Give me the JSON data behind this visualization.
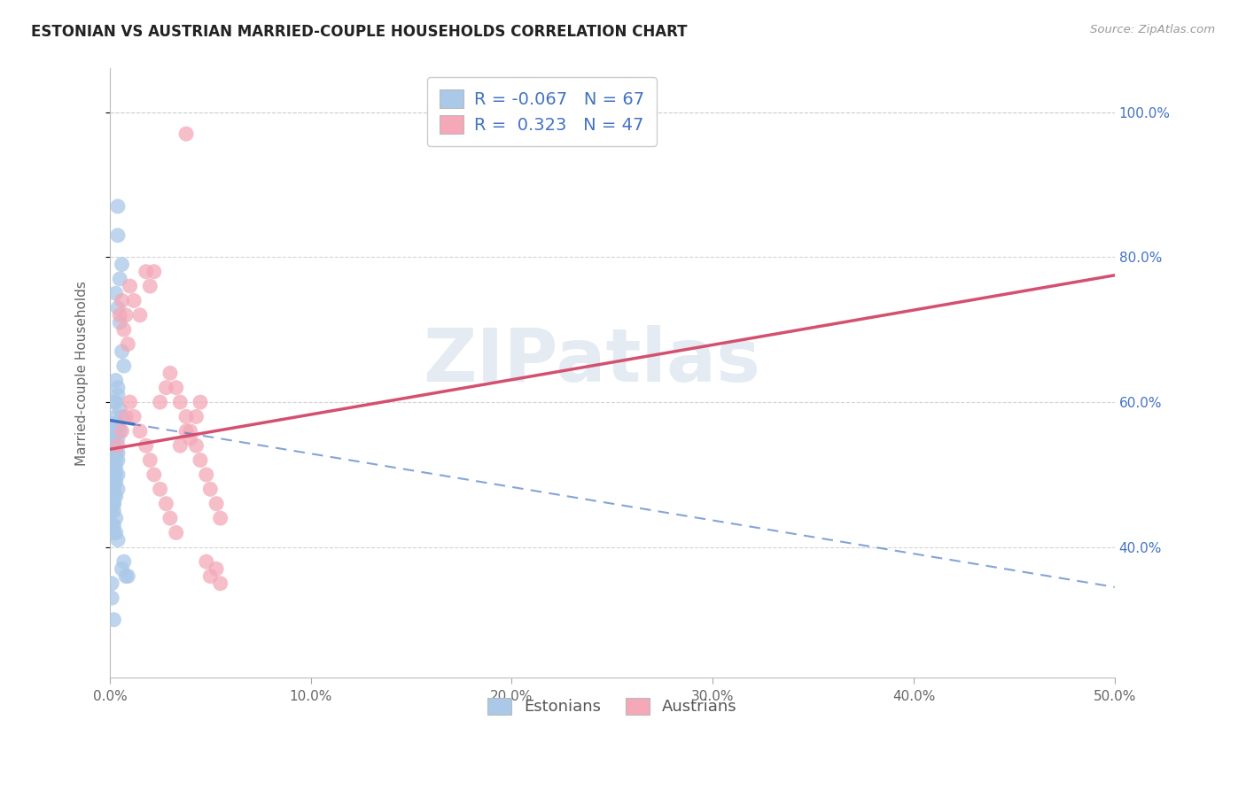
{
  "title": "ESTONIAN VS AUSTRIAN MARRIED-COUPLE HOUSEHOLDS CORRELATION CHART",
  "source": "Source: ZipAtlas.com",
  "ylabel": "Married-couple Households",
  "xlim": [
    0.0,
    0.5
  ],
  "ylim_low": 0.22,
  "ylim_high": 1.06,
  "xtick_values": [
    0.0,
    0.1,
    0.2,
    0.3,
    0.4,
    0.5
  ],
  "ytick_values": [
    0.4,
    0.6,
    0.8,
    1.0
  ],
  "estonian_color": "#aac8e8",
  "austrian_color": "#f4a8b8",
  "estonian_line_color": "#4472c4",
  "austrian_line_color": "#d45070",
  "legend_R_blue": "-0.067",
  "legend_N_blue": "67",
  "legend_R_pink": " 0.323",
  "legend_N_pink": "47",
  "watermark": "ZIPatlas",
  "background_color": "#ffffff",
  "grid_color": "#d0d0d0",
  "title_color": "#222222",
  "source_color": "#999999",
  "label_color": "#666666",
  "axis_tick_color": "#4472c4",
  "est_line_intercept": 0.575,
  "est_line_slope": -0.46,
  "aut_line_intercept": 0.535,
  "aut_line_slope": 0.48,
  "est_x": [
    0.002,
    0.004,
    0.004,
    0.006,
    0.005,
    0.003,
    0.004,
    0.005,
    0.006,
    0.007,
    0.003,
    0.004,
    0.005,
    0.006,
    0.004,
    0.003,
    0.002,
    0.003,
    0.004,
    0.005,
    0.001,
    0.002,
    0.003,
    0.004,
    0.002,
    0.001,
    0.002,
    0.003,
    0.004,
    0.003,
    0.002,
    0.002,
    0.003,
    0.004,
    0.003,
    0.002,
    0.001,
    0.002,
    0.003,
    0.004,
    0.002,
    0.003,
    0.004,
    0.002,
    0.001,
    0.002,
    0.003,
    0.001,
    0.002,
    0.002,
    0.001,
    0.001,
    0.002,
    0.003,
    0.002,
    0.001,
    0.001,
    0.002,
    0.003,
    0.004,
    0.007,
    0.006,
    0.008,
    0.009,
    0.001,
    0.001,
    0.002
  ],
  "est_y": [
    0.56,
    0.87,
    0.83,
    0.79,
    0.77,
    0.75,
    0.73,
    0.71,
    0.67,
    0.65,
    0.63,
    0.61,
    0.59,
    0.58,
    0.62,
    0.6,
    0.6,
    0.58,
    0.57,
    0.56,
    0.57,
    0.56,
    0.56,
    0.55,
    0.55,
    0.54,
    0.54,
    0.53,
    0.53,
    0.53,
    0.52,
    0.52,
    0.52,
    0.52,
    0.51,
    0.51,
    0.51,
    0.5,
    0.5,
    0.5,
    0.49,
    0.49,
    0.48,
    0.48,
    0.48,
    0.47,
    0.47,
    0.47,
    0.46,
    0.46,
    0.46,
    0.45,
    0.45,
    0.44,
    0.43,
    0.43,
    0.43,
    0.42,
    0.42,
    0.41,
    0.38,
    0.37,
    0.36,
    0.36,
    0.35,
    0.33,
    0.3
  ],
  "aut_x": [
    0.038,
    0.005,
    0.007,
    0.009,
    0.006,
    0.008,
    0.01,
    0.012,
    0.015,
    0.018,
    0.02,
    0.022,
    0.025,
    0.028,
    0.03,
    0.033,
    0.035,
    0.038,
    0.04,
    0.043,
    0.045,
    0.048,
    0.05,
    0.053,
    0.055,
    0.004,
    0.006,
    0.008,
    0.01,
    0.012,
    0.015,
    0.018,
    0.02,
    0.022,
    0.025,
    0.028,
    0.03,
    0.033,
    0.035,
    0.038,
    0.04,
    0.043,
    0.045,
    0.048,
    0.05,
    0.053,
    0.055
  ],
  "aut_y": [
    0.97,
    0.72,
    0.7,
    0.68,
    0.74,
    0.72,
    0.76,
    0.74,
    0.72,
    0.78,
    0.76,
    0.78,
    0.6,
    0.62,
    0.64,
    0.62,
    0.6,
    0.58,
    0.56,
    0.54,
    0.52,
    0.5,
    0.48,
    0.46,
    0.44,
    0.54,
    0.56,
    0.58,
    0.6,
    0.58,
    0.56,
    0.54,
    0.52,
    0.5,
    0.48,
    0.46,
    0.44,
    0.42,
    0.54,
    0.56,
    0.55,
    0.58,
    0.6,
    0.38,
    0.36,
    0.37,
    0.35
  ]
}
